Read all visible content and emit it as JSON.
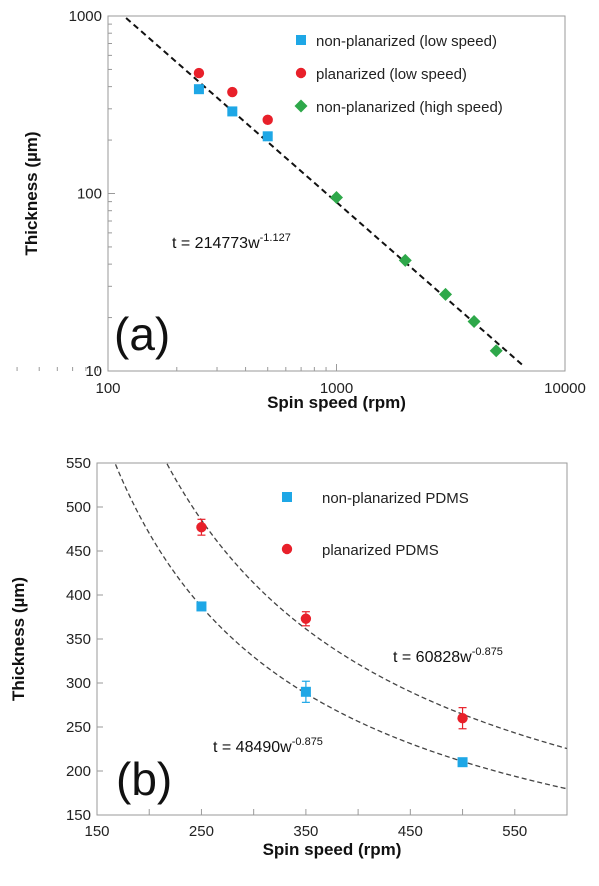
{
  "chart_data": [
    {
      "type": "scatter",
      "panel_label": "(a)",
      "xlabel": "Spin speed (rpm)",
      "ylabel": "Thickness (µm)",
      "x_scale": "log",
      "y_scale": "log",
      "xlim": [
        100,
        10000
      ],
      "ylim": [
        10,
        1000
      ],
      "x_ticks": [
        "100",
        "1000",
        "10000"
      ],
      "y_ticks": [
        "10",
        "100",
        "1000"
      ],
      "grid": false,
      "legend_position": "top-right",
      "series": [
        {
          "name": "non-planarized (low speed)",
          "marker": "square",
          "color": "#1ea7e6",
          "x": [
            250,
            350,
            500
          ],
          "y": [
            387,
            290,
            210
          ]
        },
        {
          "name": "planarized (low speed)",
          "marker": "circle",
          "color": "#e8202a",
          "x": [
            250,
            350,
            500
          ],
          "y": [
            477,
            373,
            260
          ]
        },
        {
          "name": "non-planarized (high speed)",
          "marker": "diamond",
          "color": "#2ea84a",
          "x": [
            1000,
            2000,
            3000,
            4000,
            5000
          ],
          "y": [
            95,
            42,
            27,
            19,
            13
          ]
        }
      ],
      "fits": [
        {
          "coef": 214773,
          "exponent": -1.127,
          "x_range": [
            120,
            6500
          ]
        }
      ],
      "annotations": [
        {
          "text_main": "t = 214773w",
          "text_sup": "-1.127"
        }
      ]
    },
    {
      "type": "scatter",
      "panel_label": "(b)",
      "xlabel": "Spin speed  (rpm)",
      "ylabel": "Thickness (µm)",
      "xlim": [
        150,
        600
      ],
      "ylim": [
        150,
        550
      ],
      "x_ticks": [
        "150",
        "250",
        "350",
        "450",
        "550"
      ],
      "y_ticks": [
        "150",
        "200",
        "250",
        "300",
        "350",
        "400",
        "450",
        "500",
        "550"
      ],
      "grid": false,
      "legend_position": "top-right",
      "series": [
        {
          "name": "non-planarized PDMS",
          "marker": "square",
          "color": "#1ea7e6",
          "x": [
            250,
            350,
            500
          ],
          "y": [
            387,
            290,
            210
          ],
          "err": [
            3,
            12,
            3
          ]
        },
        {
          "name": "planarized PDMS",
          "marker": "circle",
          "color": "#e8202a",
          "x": [
            250,
            350,
            500
          ],
          "y": [
            477,
            373,
            260
          ],
          "err": [
            9,
            8,
            12
          ]
        }
      ],
      "fits": [
        {
          "coef": 48490,
          "exponent": -0.875,
          "x_range": [
            162,
            600
          ]
        },
        {
          "coef": 60828,
          "exponent": -0.875,
          "x_range": [
            210,
            600
          ]
        }
      ],
      "annotations": [
        {
          "text_main": "t = 60828w",
          "text_sup": "-0.875"
        },
        {
          "text_main": "t = 48490w",
          "text_sup": "-0.875"
        }
      ]
    }
  ]
}
